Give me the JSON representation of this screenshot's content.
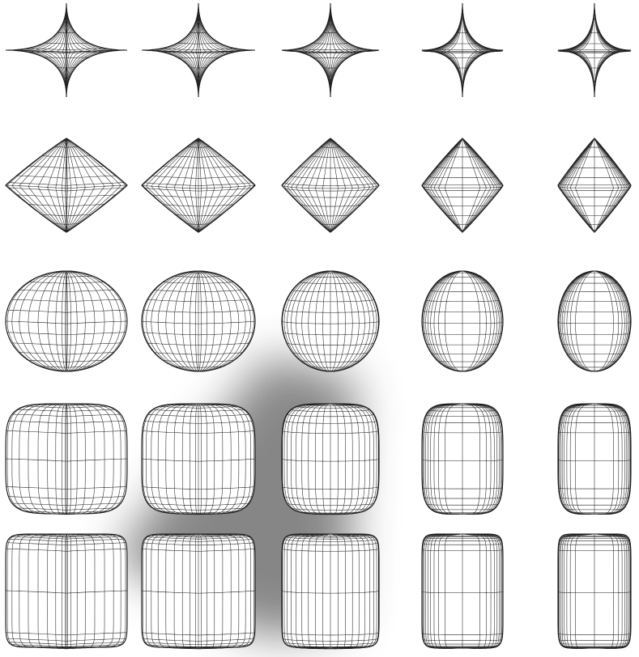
{
  "figure": {
    "rows": 5,
    "columns": 5,
    "line_color": "#222222",
    "background": "#ffffff",
    "shadow_color": "#808080",
    "rows_data": [
      {
        "row": "1",
        "shapes": [
          "spike-star-4",
          "spike-star-4-soft",
          "spike-disc",
          "spike-square",
          "spike-star-4-cusp"
        ]
      },
      {
        "row": "2",
        "shapes": [
          "octahedron-wide",
          "octahedron-rounded",
          "double-cone",
          "octahedron-narrow",
          "octahedron-twisted"
        ]
      },
      {
        "row": "3",
        "shapes": [
          "ellipsoid-ridged",
          "ellipsoid-soft",
          "sphere",
          "ellipsoid-square",
          "ellipsoid-lobed"
        ]
      },
      {
        "row": "4",
        "shapes": [
          "rounded-cube-wide",
          "rounded-cube",
          "rounded-cylinder",
          "rounded-cube-narrow",
          "rounded-cube-lobed"
        ]
      },
      {
        "row": "5",
        "shapes": [
          "cube-wide",
          "cube",
          "cylinder",
          "cube-narrow",
          "cube-lobed"
        ]
      }
    ]
  }
}
